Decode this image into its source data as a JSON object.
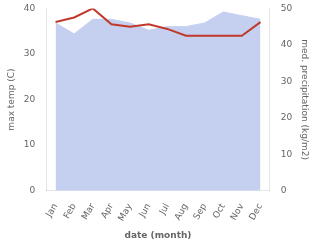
{
  "chart_data": {
    "type": "line",
    "categories": [
      "Jan",
      "Feb",
      "Mar",
      "Apr",
      "May",
      "Jun",
      "Jul",
      "Aug",
      "Sep",
      "Oct",
      "Nov",
      "Dec"
    ],
    "xlabel": "date (month)",
    "ylabel": "max temp (C)",
    "y2label": "med. precipitation (kg/m2)",
    "ylim": [
      0,
      40
    ],
    "yticks": [
      0,
      10,
      20,
      30,
      40
    ],
    "y2lim": [
      0,
      50
    ],
    "y2ticks": [
      0,
      10,
      20,
      30,
      40,
      50
    ],
    "grid": false,
    "series": [
      {
        "type": "area",
        "color": "#c5cff0",
        "axis": "y2",
        "values": [
          46,
          43,
          47,
          47,
          46,
          44,
          45,
          45,
          46,
          49,
          48,
          47
        ]
      },
      {
        "type": "line",
        "color": "#c0392b",
        "values": [
          37.0,
          38.0,
          40.0,
          36.5,
          36.0,
          36.5,
          35.5,
          34.0,
          34.0,
          34.0,
          34.0,
          37.0
        ]
      }
    ]
  }
}
